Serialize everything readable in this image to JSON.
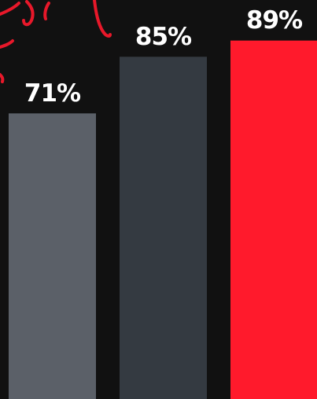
{
  "chart_data": {
    "type": "bar",
    "categories": [
      null,
      null,
      null
    ],
    "values": [
      71,
      85,
      89
    ],
    "value_labels": [
      "71%",
      "85%",
      "89%"
    ],
    "colors": [
      "#5b6068",
      "#343a41",
      "#ff1a2c"
    ]
  }
}
